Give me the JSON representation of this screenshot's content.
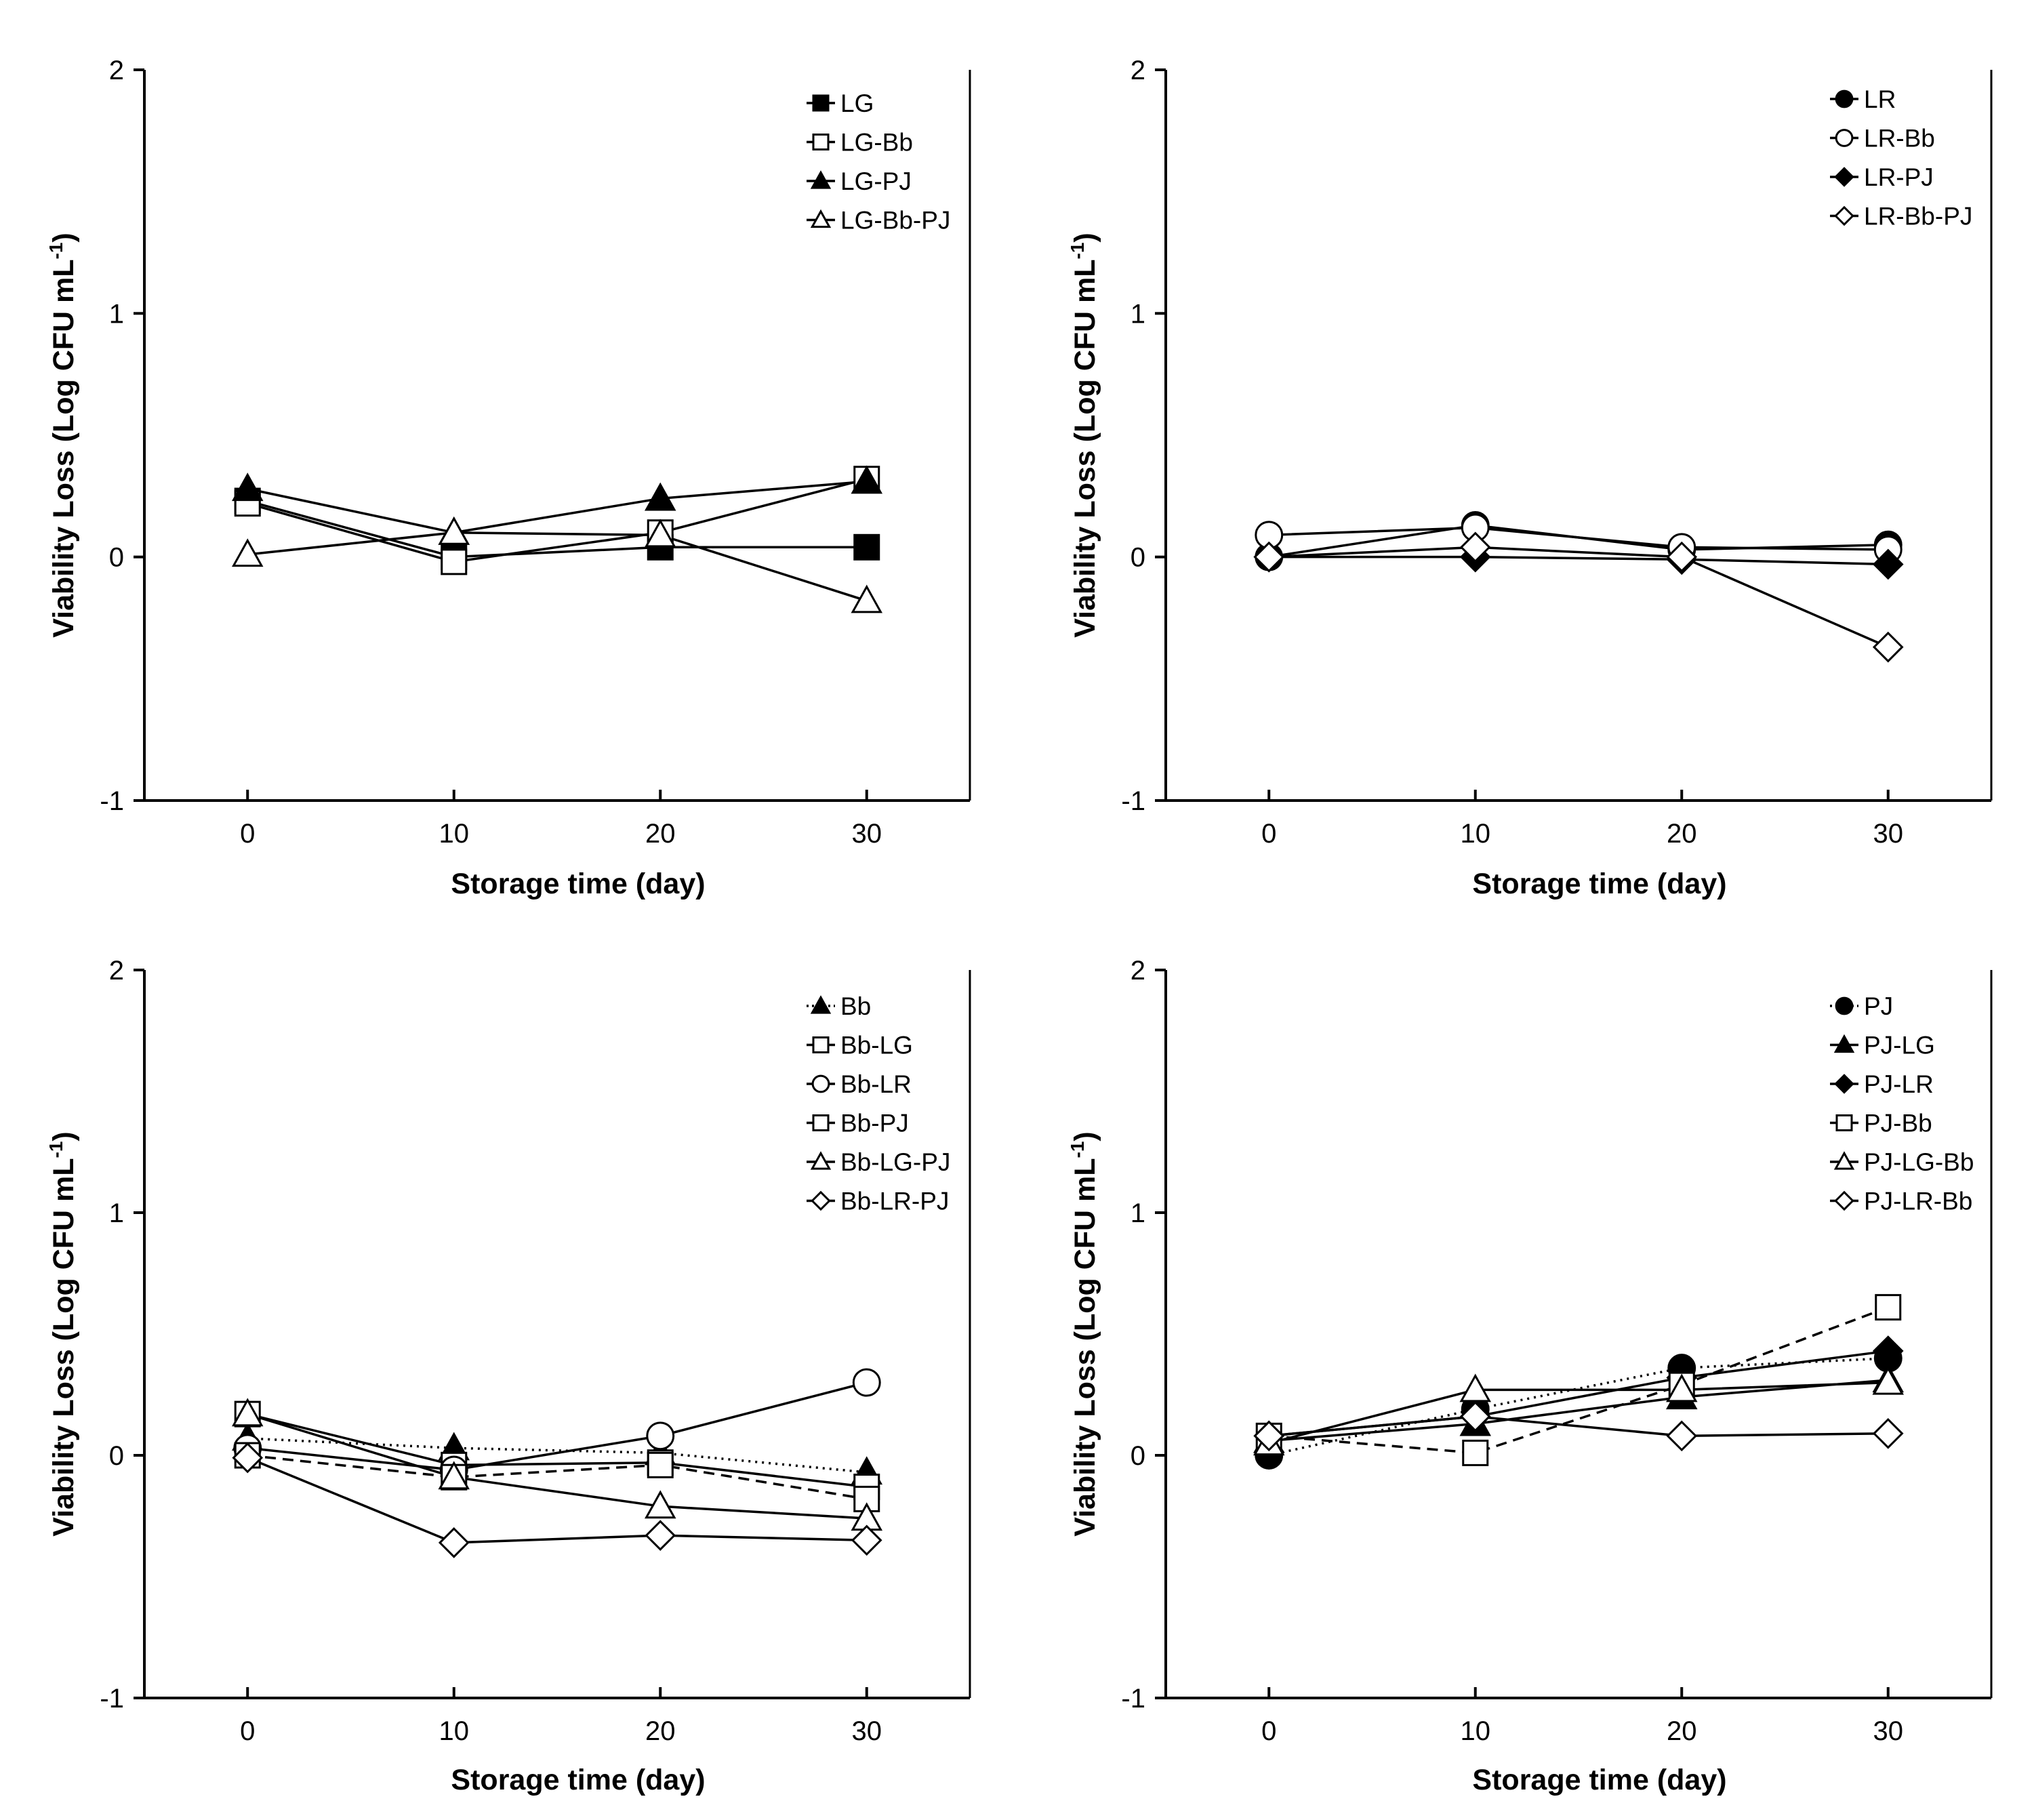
{
  "figure": {
    "panels": [
      {
        "id": "a",
        "xlabel": "Storage time (day)",
        "ylabel": "Viability Loss (Log CFU mL",
        "ylabel_sup": "-1",
        "ylabel_close": ")"
      },
      {
        "id": "b",
        "xlabel": "Storage time (day)",
        "ylabel": "Viability Loss (Log CFU mL",
        "ylabel_sup": "-1",
        "ylabel_close": ")"
      },
      {
        "id": "c",
        "xlabel": "Storage time (day)",
        "ylabel": "Viability Loss (Log CFU mL",
        "ylabel_sup": "-1",
        "ylabel_close": ")"
      },
      {
        "id": "d",
        "xlabel": "Storage time (day)",
        "ylabel": "Viability Loss (Log CFU mL",
        "ylabel_sup": "-1",
        "ylabel_close": ")"
      }
    ]
  },
  "chart_data": [
    {
      "type": "line",
      "x": [
        0,
        10,
        20,
        30
      ],
      "x_ticks": [
        "0",
        "10",
        "20",
        "30"
      ],
      "ylim": [
        -1,
        2
      ],
      "y_ticks": [
        "2",
        "1",
        "0",
        "-1"
      ],
      "grid": false,
      "legend": "top-right",
      "series": [
        {
          "name": "LG",
          "values": [
            0.23,
            0.0,
            0.04,
            0.04
          ],
          "marker": "square",
          "fill": "black",
          "dash": "solid"
        },
        {
          "name": "LG-Bb",
          "values": [
            0.22,
            -0.02,
            0.1,
            0.32
          ],
          "marker": "square",
          "fill": "white",
          "dash": "solid"
        },
        {
          "name": "LG-PJ",
          "values": [
            0.28,
            0.1,
            0.24,
            0.31
          ],
          "marker": "triangle",
          "fill": "black",
          "dash": "solid"
        },
        {
          "name": "LG-Bb-PJ",
          "values": [
            0.01,
            0.1,
            0.09,
            -0.18
          ],
          "marker": "triangle",
          "fill": "white",
          "dash": "solid"
        }
      ]
    },
    {
      "type": "line",
      "x": [
        0,
        10,
        20,
        30
      ],
      "x_ticks": [
        "0",
        "10",
        "20",
        "30"
      ],
      "ylim": [
        -1,
        2
      ],
      "y_ticks": [
        "2",
        "1",
        "0",
        "-1"
      ],
      "grid": false,
      "legend": "top-right",
      "series": [
        {
          "name": "LR",
          "values": [
            0.0,
            0.13,
            0.03,
            0.05
          ],
          "marker": "circle",
          "fill": "black",
          "dash": "solid"
        },
        {
          "name": "LR-Bb",
          "values": [
            0.09,
            0.12,
            0.04,
            0.03
          ],
          "marker": "circle",
          "fill": "white",
          "dash": "solid"
        },
        {
          "name": "LR-PJ",
          "values": [
            0.0,
            0.0,
            -0.01,
            -0.03
          ],
          "marker": "diamond",
          "fill": "black",
          "dash": "solid"
        },
        {
          "name": "LR-Bb-PJ",
          "values": [
            0.0,
            0.04,
            0.0,
            -0.37
          ],
          "marker": "diamond",
          "fill": "white",
          "dash": "solid"
        }
      ]
    },
    {
      "type": "line",
      "x": [
        0,
        10,
        20,
        30
      ],
      "x_ticks": [
        "0",
        "10",
        "20",
        "30"
      ],
      "ylim": [
        -1,
        2
      ],
      "y_ticks": [
        "2",
        "1",
        "0",
        "-1"
      ],
      "grid": false,
      "legend": "top-right",
      "series": [
        {
          "name": "Bb",
          "values": [
            0.07,
            0.03,
            0.01,
            -0.07
          ],
          "marker": "triangle",
          "fill": "black",
          "dash": "dotted"
        },
        {
          "name": "Bb-LG",
          "values": [
            0.17,
            -0.04,
            -0.03,
            -0.13
          ],
          "marker": "square",
          "fill": "white",
          "dash": "solid"
        },
        {
          "name": "Bb-LR",
          "values": [
            0.03,
            -0.06,
            0.08,
            0.3
          ],
          "marker": "circle",
          "fill": "white",
          "dash": "solid"
        },
        {
          "name": "Bb-PJ",
          "values": [
            0.0,
            -0.09,
            -0.04,
            -0.18
          ],
          "marker": "square",
          "fill": "white",
          "dash": "dashed"
        },
        {
          "name": "Bb-LG-PJ",
          "values": [
            0.17,
            -0.09,
            -0.21,
            -0.26
          ],
          "marker": "triangle",
          "fill": "white",
          "dash": "solid"
        },
        {
          "name": "Bb-LR-PJ",
          "values": [
            -0.01,
            -0.36,
            -0.33,
            -0.35
          ],
          "marker": "diamond",
          "fill": "white",
          "dash": "solid"
        }
      ]
    },
    {
      "type": "line",
      "x": [
        0,
        10,
        20,
        30
      ],
      "x_ticks": [
        "0",
        "10",
        "20",
        "30"
      ],
      "ylim": [
        -1,
        2
      ],
      "y_ticks": [
        "2",
        "1",
        "0",
        "-1"
      ],
      "grid": false,
      "legend": "top-right",
      "series": [
        {
          "name": "PJ",
          "values": [
            0.0,
            0.19,
            0.36,
            0.4
          ],
          "marker": "circle",
          "fill": "black",
          "dash": "dotted"
        },
        {
          "name": "PJ-LG",
          "values": [
            0.06,
            0.13,
            0.24,
            0.31
          ],
          "marker": "triangle",
          "fill": "black",
          "dash": "solid"
        },
        {
          "name": "PJ-LR",
          "values": [
            0.08,
            0.16,
            0.32,
            0.43
          ],
          "marker": "diamond",
          "fill": "black",
          "dash": "solid"
        },
        {
          "name": "PJ-Bb",
          "values": [
            0.08,
            0.01,
            0.29,
            0.61
          ],
          "marker": "square",
          "fill": "white",
          "dash": "dashed"
        },
        {
          "name": "PJ-LG-Bb",
          "values": [
            0.05,
            0.27,
            0.27,
            0.3
          ],
          "marker": "triangle",
          "fill": "white",
          "dash": "solid"
        },
        {
          "name": "PJ-LR-Bb",
          "values": [
            0.08,
            0.16,
            0.08,
            0.09
          ],
          "marker": "diamond",
          "fill": "white",
          "dash": "solid"
        }
      ]
    }
  ]
}
